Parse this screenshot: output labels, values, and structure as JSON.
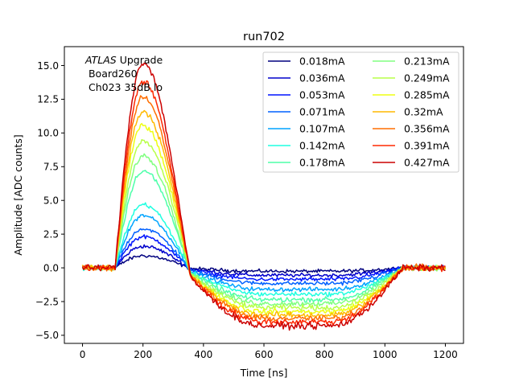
{
  "chart_data": {
    "type": "line",
    "title": "run702",
    "xlabel": "Time [ns]",
    "ylabel": "Amplitude [ADC counts]",
    "xlim": [
      -60,
      1260
    ],
    "ylim": [
      -5.6,
      16.4
    ],
    "xticks": [
      0,
      200,
      400,
      600,
      800,
      1000,
      1200
    ],
    "yticks": [
      -5.0,
      -2.5,
      0.0,
      2.5,
      5.0,
      7.5,
      10.0,
      12.5,
      15.0
    ],
    "xtick_labels": [
      "0",
      "200",
      "400",
      "600",
      "800",
      "1000",
      "1200"
    ],
    "ytick_labels": [
      "−5.0",
      "−2.5",
      "0.0",
      "2.5",
      "5.0",
      "7.5",
      "10.0",
      "12.5",
      "15.0"
    ],
    "grid": false,
    "legend_position": "top-right",
    "legend_columns": 2,
    "annotation": {
      "italic": "ATLAS",
      "rest": " Upgrade",
      "line2": " Board260",
      "line3": " Ch023 35dB lo"
    },
    "time_range_ns": [
      0,
      1200
    ],
    "series": [
      {
        "name": "0.018mA",
        "color": "#00007f",
        "peak": 0.9,
        "undershoot": -0.25
      },
      {
        "name": "0.036mA",
        "color": "#0000cc",
        "peak": 1.6,
        "undershoot": -0.55
      },
      {
        "name": "0.053mA",
        "color": "#0014ff",
        "peak": 2.3,
        "undershoot": -0.85
      },
      {
        "name": "0.071mA",
        "color": "#0060ff",
        "peak": 2.9,
        "undershoot": -1.15
      },
      {
        "name": "0.107mA",
        "color": "#00a4ff",
        "peak": 3.9,
        "undershoot": -1.6
      },
      {
        "name": "0.142mA",
        "color": "#1fffe0",
        "peak": 4.7,
        "undershoot": -1.95
      },
      {
        "name": "0.178mA",
        "color": "#4dffa9",
        "peak": 7.2,
        "undershoot": -2.35
      },
      {
        "name": "0.213mA",
        "color": "#80ff80",
        "peak": 8.3,
        "undershoot": -2.65
      },
      {
        "name": "0.249mA",
        "color": "#b8ff48",
        "peak": 9.4,
        "undershoot": -2.95
      },
      {
        "name": "0.285mA",
        "color": "#edff12",
        "peak": 10.6,
        "undershoot": -3.25
      },
      {
        "name": "0.32mA",
        "color": "#ffb900",
        "peak": 11.6,
        "undershoot": -3.5
      },
      {
        "name": "0.356mA",
        "color": "#ff6e00",
        "peak": 12.7,
        "undershoot": -3.75
      },
      {
        "name": "0.391mA",
        "color": "#ff2800",
        "peak": 13.8,
        "undershoot": -4.0
      },
      {
        "name": "0.427mA",
        "color": "#cc0000",
        "peak": 15.2,
        "undershoot": -4.3
      }
    ]
  }
}
